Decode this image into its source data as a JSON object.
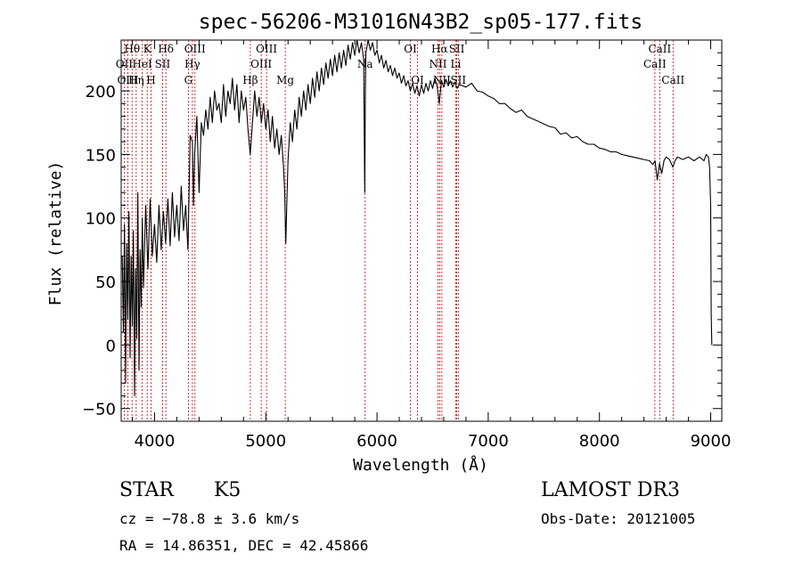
{
  "chart_data": {
    "type": "line",
    "title": "spec-56206-M31016N43B2_sp05-177.fits",
    "xlabel": "Wavelength (Å)",
    "ylabel": "Flux (relative)",
    "xlim": [
      3700,
      9100
    ],
    "ylim": [
      -60,
      240
    ],
    "xticks": [
      4000,
      5000,
      6000,
      7000,
      8000,
      9000
    ],
    "yticks": [
      -50,
      0,
      50,
      100,
      150,
      200
    ],
    "grid": false,
    "line_color": "#000000",
    "marker_color": "#cc0000",
    "series": [
      {
        "name": "spectrum",
        "points": [
          [
            3710,
            70
          ],
          [
            3720,
            10
          ],
          [
            3730,
            95
          ],
          [
            3740,
            -30
          ],
          [
            3750,
            80
          ],
          [
            3760,
            20
          ],
          [
            3770,
            105
          ],
          [
            3780,
            -10
          ],
          [
            3790,
            70
          ],
          [
            3800,
            15
          ],
          [
            3810,
            90
          ],
          [
            3820,
            -40
          ],
          [
            3830,
            60
          ],
          [
            3840,
            5
          ],
          [
            3850,
            120
          ],
          [
            3860,
            -20
          ],
          [
            3870,
            75
          ],
          [
            3880,
            30
          ],
          [
            3890,
            100
          ],
          [
            3900,
            45
          ],
          [
            3920,
            110
          ],
          [
            3940,
            60
          ],
          [
            3960,
            115
          ],
          [
            3980,
            70
          ],
          [
            4000,
            95
          ],
          [
            4020,
            65
          ],
          [
            4040,
            110
          ],
          [
            4060,
            75
          ],
          [
            4080,
            105
          ],
          [
            4100,
            80
          ],
          [
            4120,
            115
          ],
          [
            4140,
            78
          ],
          [
            4160,
            120
          ],
          [
            4180,
            85
          ],
          [
            4200,
            110
          ],
          [
            4220,
            82
          ],
          [
            4240,
            125
          ],
          [
            4260,
            90
          ],
          [
            4280,
            110
          ],
          [
            4300,
            75
          ],
          [
            4320,
            165
          ],
          [
            4340,
            160
          ],
          [
            4350,
            110
          ],
          [
            4360,
            150
          ],
          [
            4380,
            180
          ],
          [
            4400,
            120
          ],
          [
            4420,
            175
          ],
          [
            4440,
            165
          ],
          [
            4460,
            185
          ],
          [
            4480,
            170
          ],
          [
            4500,
            195
          ],
          [
            4520,
            175
          ],
          [
            4540,
            200
          ],
          [
            4560,
            185
          ],
          [
            4580,
            190
          ],
          [
            4600,
            175
          ],
          [
            4620,
            205
          ],
          [
            4640,
            180
          ],
          [
            4660,
            200
          ],
          [
            4680,
            190
          ],
          [
            4700,
            210
          ],
          [
            4720,
            185
          ],
          [
            4740,
            205
          ],
          [
            4760,
            175
          ],
          [
            4780,
            200
          ],
          [
            4800,
            185
          ],
          [
            4820,
            195
          ],
          [
            4840,
            170
          ],
          [
            4860,
            150
          ],
          [
            4880,
            175
          ],
          [
            4900,
            200
          ],
          [
            4920,
            180
          ],
          [
            4940,
            195
          ],
          [
            4960,
            175
          ],
          [
            4980,
            190
          ],
          [
            5000,
            170
          ],
          [
            5020,
            185
          ],
          [
            5040,
            160
          ],
          [
            5060,
            180
          ],
          [
            5080,
            155
          ],
          [
            5100,
            170
          ],
          [
            5120,
            150
          ],
          [
            5140,
            165
          ],
          [
            5160,
            140
          ],
          [
            5170,
            120
          ],
          [
            5180,
            80
          ],
          [
            5190,
            115
          ],
          [
            5200,
            145
          ],
          [
            5220,
            175
          ],
          [
            5240,
            160
          ],
          [
            5260,
            185
          ],
          [
            5280,
            170
          ],
          [
            5300,
            195
          ],
          [
            5320,
            180
          ],
          [
            5340,
            200
          ],
          [
            5360,
            185
          ],
          [
            5380,
            205
          ],
          [
            5400,
            190
          ],
          [
            5420,
            210
          ],
          [
            5440,
            195
          ],
          [
            5460,
            215
          ],
          [
            5480,
            200
          ],
          [
            5500,
            218
          ],
          [
            5520,
            205
          ],
          [
            5540,
            222
          ],
          [
            5560,
            210
          ],
          [
            5580,
            225
          ],
          [
            5600,
            212
          ],
          [
            5620,
            228
          ],
          [
            5640,
            215
          ],
          [
            5660,
            230
          ],
          [
            5680,
            218
          ],
          [
            5700,
            232
          ],
          [
            5720,
            220
          ],
          [
            5740,
            236
          ],
          [
            5760,
            225
          ],
          [
            5780,
            238
          ],
          [
            5800,
            228
          ],
          [
            5820,
            240
          ],
          [
            5840,
            230
          ],
          [
            5860,
            238
          ],
          [
            5880,
            225
          ],
          [
            5890,
            120
          ],
          [
            5895,
            200
          ],
          [
            5900,
            230
          ],
          [
            5920,
            240
          ],
          [
            5940,
            232
          ],
          [
            5960,
            238
          ],
          [
            5980,
            228
          ],
          [
            6000,
            232
          ],
          [
            6020,
            222
          ],
          [
            6040,
            228
          ],
          [
            6060,
            218
          ],
          [
            6080,
            224
          ],
          [
            6100,
            215
          ],
          [
            6120,
            220
          ],
          [
            6140,
            212
          ],
          [
            6160,
            218
          ],
          [
            6180,
            210
          ],
          [
            6200,
            214
          ],
          [
            6220,
            206
          ],
          [
            6240,
            212
          ],
          [
            6260,
            204
          ],
          [
            6280,
            208
          ],
          [
            6300,
            200
          ],
          [
            6320,
            206
          ],
          [
            6340,
            198
          ],
          [
            6360,
            204
          ],
          [
            6380,
            196
          ],
          [
            6400,
            205
          ],
          [
            6420,
            198
          ],
          [
            6440,
            206
          ],
          [
            6460,
            200
          ],
          [
            6480,
            208
          ],
          [
            6500,
            202
          ],
          [
            6520,
            210
          ],
          [
            6540,
            204
          ],
          [
            6560,
            190
          ],
          [
            6570,
            200
          ],
          [
            6580,
            208
          ],
          [
            6600,
            203
          ],
          [
            6620,
            209
          ],
          [
            6640,
            204
          ],
          [
            6660,
            208
          ],
          [
            6680,
            203
          ],
          [
            6700,
            207
          ],
          [
            6720,
            202
          ],
          [
            6740,
            205
          ],
          [
            6800,
            203
          ],
          [
            6850,
            206
          ],
          [
            6900,
            200
          ],
          [
            6950,
            199
          ],
          [
            7000,
            196
          ],
          [
            7050,
            194
          ],
          [
            7100,
            190
          ],
          [
            7150,
            190
          ],
          [
            7200,
            186
          ],
          [
            7250,
            183
          ],
          [
            7300,
            185
          ],
          [
            7350,
            180
          ],
          [
            7400,
            178
          ],
          [
            7450,
            176
          ],
          [
            7500,
            174
          ],
          [
            7550,
            172
          ],
          [
            7600,
            171
          ],
          [
            7650,
            166
          ],
          [
            7700,
            167
          ],
          [
            7750,
            163
          ],
          [
            7800,
            164
          ],
          [
            7850,
            160
          ],
          [
            7900,
            158
          ],
          [
            7950,
            158
          ],
          [
            8000,
            155
          ],
          [
            8050,
            154
          ],
          [
            8100,
            152
          ],
          [
            8150,
            152
          ],
          [
            8200,
            150
          ],
          [
            8250,
            149
          ],
          [
            8300,
            148
          ],
          [
            8350,
            147
          ],
          [
            8400,
            146
          ],
          [
            8450,
            145
          ],
          [
            8480,
            142
          ],
          [
            8500,
            145
          ],
          [
            8520,
            130
          ],
          [
            8540,
            143
          ],
          [
            8560,
            135
          ],
          [
            8580,
            145
          ],
          [
            8600,
            148
          ],
          [
            8630,
            146
          ],
          [
            8660,
            140
          ],
          [
            8680,
            145
          ],
          [
            8700,
            148
          ],
          [
            8750,
            146
          ],
          [
            8800,
            148
          ],
          [
            8850,
            145
          ],
          [
            8900,
            148
          ],
          [
            8940,
            145
          ],
          [
            8960,
            150
          ],
          [
            8980,
            148
          ],
          [
            8990,
            140
          ],
          [
            9000,
            110
          ],
          [
            9005,
            25
          ],
          [
            9010,
            0
          ]
        ]
      }
    ],
    "lines": [
      {
        "label": "Hθ",
        "wavelength": 3798,
        "row": 0
      },
      {
        "label": "OII",
        "wavelength": 3727,
        "row": 1
      },
      {
        "label": "OIII",
        "wavelength": 3760,
        "row": 2
      },
      {
        "label": "K",
        "wavelength": 3934,
        "row": 0
      },
      {
        "label": "HeI",
        "wavelength": 3889,
        "row": 1
      },
      {
        "label": "Hη",
        "wavelength": 3835,
        "row": 2
      },
      {
        "label": "SII",
        "wavelength": 4072,
        "row": 1
      },
      {
        "label": "H",
        "wavelength": 3968,
        "row": 2
      },
      {
        "label": "Hδ",
        "wavelength": 4102,
        "row": 0
      },
      {
        "label": "OIII",
        "wavelength": 4363,
        "row": 0
      },
      {
        "label": "Hγ",
        "wavelength": 4340,
        "row": 1
      },
      {
        "label": "G",
        "wavelength": 4304,
        "row": 2
      },
      {
        "label": "Hβ",
        "wavelength": 4861,
        "row": 2
      },
      {
        "label": "OIII",
        "wavelength": 5007,
        "row": 0
      },
      {
        "label": "OIII",
        "wavelength": 4959,
        "row": 1
      },
      {
        "label": "Mg",
        "wavelength": 5175,
        "row": 2
      },
      {
        "label": "Na",
        "wavelength": 5893,
        "row": 1
      },
      {
        "label": "OI",
        "wavelength": 6300,
        "row": 0
      },
      {
        "label": "OI",
        "wavelength": 6364,
        "row": 2
      },
      {
        "label": "Hα",
        "wavelength": 6563,
        "row": 0
      },
      {
        "label": "NII",
        "wavelength": 6548,
        "row": 1
      },
      {
        "label": "NII",
        "wavelength": 6583,
        "row": 2
      },
      {
        "label": "SII",
        "wavelength": 6717,
        "row": 0
      },
      {
        "label": "Li",
        "wavelength": 6708,
        "row": 1
      },
      {
        "label": "SII",
        "wavelength": 6731,
        "row": 2
      },
      {
        "label": "CaII",
        "wavelength": 8542,
        "row": 0
      },
      {
        "label": "CaII",
        "wavelength": 8498,
        "row": 1
      },
      {
        "label": "CaII",
        "wavelength": 8662,
        "row": 2
      }
    ]
  },
  "info": {
    "object_class": "STAR",
    "subclass": "K5",
    "cz": "cz = −78.8 ± 3.6 km/s",
    "coords": "RA =  14.86351, DEC =  42.45866",
    "survey": "LAMOST DR3",
    "obs_date": "Obs-Date: 20121005"
  }
}
